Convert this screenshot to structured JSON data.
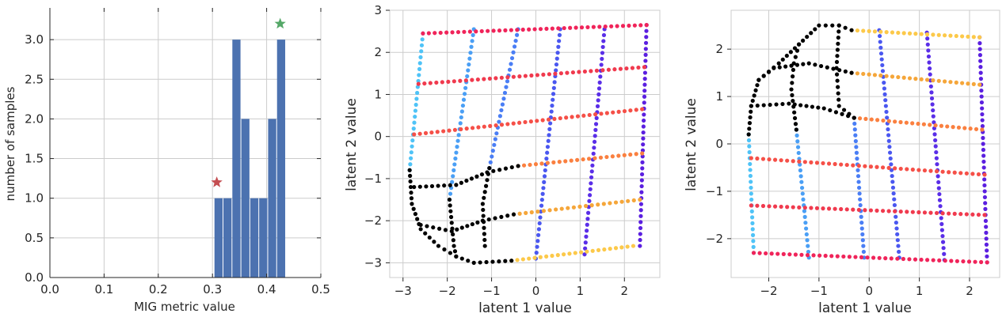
{
  "chart_data": [
    {
      "type": "bar",
      "xlabel": "MIG metric value",
      "ylabel": "number of samples",
      "xlim": [
        0.0,
        0.5
      ],
      "ylim": [
        0.0,
        3.4
      ],
      "xticks": [
        "0.0",
        "0.1",
        "0.2",
        "0.3",
        "0.4",
        "0.5"
      ],
      "yticks": [
        "0.0",
        "0.5",
        "1.0",
        "1.5",
        "2.0",
        "2.5",
        "3.0"
      ],
      "grid": true,
      "bar_color": "#4c72b0",
      "bins": [
        {
          "x0": 0.303,
          "x1": 0.3195,
          "value": 1
        },
        {
          "x0": 0.3195,
          "x1": 0.336,
          "value": 1
        },
        {
          "x0": 0.336,
          "x1": 0.3525,
          "value": 3
        },
        {
          "x0": 0.3525,
          "x1": 0.369,
          "value": 2
        },
        {
          "x0": 0.369,
          "x1": 0.3855,
          "value": 1
        },
        {
          "x0": 0.3855,
          "x1": 0.402,
          "value": 1
        },
        {
          "x0": 0.402,
          "x1": 0.4185,
          "value": 2
        },
        {
          "x0": 0.4185,
          "x1": 0.435,
          "value": 3
        }
      ],
      "markers": [
        {
          "x": 0.308,
          "y": 1.2,
          "color": "#c44e52",
          "shape": "star"
        },
        {
          "x": 0.425,
          "y": 3.2,
          "color": "#55a868",
          "shape": "star"
        }
      ]
    },
    {
      "type": "scatter",
      "xlabel": "latent 1 value",
      "ylabel": "latent 2 value",
      "xlim": [
        -3.3,
        2.8
      ],
      "ylim": [
        -3.35,
        3.0
      ],
      "xticks": [
        "−3",
        "−2",
        "−1",
        "0",
        "1",
        "2"
      ],
      "yticks": [
        "−3",
        "−2",
        "−1",
        "0",
        "1",
        "2",
        "3"
      ],
      "xtick_values": [
        -3,
        -2,
        -1,
        0,
        1,
        2
      ],
      "ytick_values": [
        -3,
        -2,
        -1,
        0,
        1,
        2,
        3
      ],
      "grid": true,
      "grid_lines": [
        {
          "color": "#4fc3f7",
          "points": [
            [
              -2.85,
              -0.8
            ],
            [
              -2.55,
              2.45
            ]
          ]
        },
        {
          "color": "#4a9ff5",
          "points": [
            [
              -1.95,
              -1.5
            ],
            [
              -1.4,
              2.55
            ]
          ]
        },
        {
          "color": "#4a7ef5",
          "points": [
            [
              -1.05,
              -0.75
            ],
            [
              -0.4,
              2.55
            ]
          ]
        },
        {
          "color": "#4a57f0",
          "points": [
            [
              0.0,
              -2.9
            ],
            [
              0.55,
              2.55
            ]
          ]
        },
        {
          "color": "#5a2ee8",
          "points": [
            [
              1.1,
              -2.8
            ],
            [
              1.55,
              2.55
            ]
          ]
        },
        {
          "color": "#5b1fe0",
          "points": [
            [
              2.35,
              -2.6
            ],
            [
              2.5,
              2.65
            ]
          ]
        },
        {
          "color": "#f0245a",
          "points": [
            [
              -2.55,
              2.45
            ],
            [
              2.5,
              2.65
            ]
          ]
        },
        {
          "color": "#f03a4e",
          "points": [
            [
              -2.65,
              1.25
            ],
            [
              2.45,
              1.65
            ]
          ]
        },
        {
          "color": "#f55048",
          "points": [
            [
              -2.75,
              0.05
            ],
            [
              2.4,
              0.65
            ]
          ]
        },
        {
          "color": "#fa8040",
          "points": [
            [
              -0.4,
              -0.7
            ],
            [
              2.4,
              -0.4
            ]
          ]
        },
        {
          "color": "#f5a63a",
          "points": [
            [
              -0.5,
              -1.85
            ],
            [
              2.35,
              -1.5
            ]
          ]
        },
        {
          "color": "#fcc94a",
          "points": [
            [
              -0.55,
              -2.95
            ],
            [
              2.2,
              -2.6
            ]
          ]
        },
        {
          "color": "#000000",
          "points": [
            [
              -2.85,
              -0.8
            ],
            [
              -2.8,
              -1.6
            ],
            [
              -2.6,
              -2.2
            ],
            [
              -2.2,
              -2.6
            ],
            [
              -1.8,
              -2.85
            ],
            [
              -1.4,
              -3.0
            ],
            [
              -0.55,
              -2.95
            ]
          ]
        },
        {
          "color": "#000000",
          "points": [
            [
              -2.75,
              -1.2
            ],
            [
              -1.8,
              -1.15
            ],
            [
              -1.1,
              -0.85
            ],
            [
              -0.4,
              -0.7
            ]
          ]
        },
        {
          "color": "#000000",
          "points": [
            [
              -2.6,
              -2.1
            ],
            [
              -1.9,
              -2.25
            ],
            [
              -1.2,
              -2.0
            ],
            [
              -0.5,
              -1.85
            ]
          ]
        },
        {
          "color": "#000000",
          "points": [
            [
              -1.95,
              -1.5
            ],
            [
              -1.85,
              -2.6
            ],
            [
              -1.8,
              -2.85
            ]
          ]
        },
        {
          "color": "#000000",
          "points": [
            [
              -1.05,
              -0.75
            ],
            [
              -1.2,
              -1.6
            ],
            [
              -1.15,
              -2.6
            ]
          ]
        }
      ]
    },
    {
      "type": "scatter",
      "xlabel": "latent 1 value",
      "ylabel": "latent 2 value",
      "xlim": [
        -2.75,
        2.6
      ],
      "ylim": [
        -2.82,
        2.82
      ],
      "xticks": [
        "−2",
        "−1",
        "0",
        "1",
        "2"
      ],
      "yticks": [
        "−2",
        "−1",
        "0",
        "1",
        "2"
      ],
      "xtick_values": [
        -2,
        -1,
        0,
        1,
        2
      ],
      "ytick_values": [
        -2,
        -1,
        0,
        1,
        2
      ],
      "grid": true,
      "grid_lines": [
        {
          "color": "#4fc3f7",
          "points": [
            [
              -2.4,
              0.2
            ],
            [
              -2.3,
              -2.3
            ]
          ]
        },
        {
          "color": "#4a9ff5",
          "points": [
            [
              -1.45,
              0.3
            ],
            [
              -1.2,
              -2.4
            ]
          ]
        },
        {
          "color": "#4a7ef5",
          "points": [
            [
              -0.3,
              0.55
            ],
            [
              -0.1,
              -2.4
            ]
          ]
        },
        {
          "color": "#4a57f0",
          "points": [
            [
              0.2,
              2.4
            ],
            [
              0.6,
              -2.4
            ]
          ]
        },
        {
          "color": "#5a2ee8",
          "points": [
            [
              1.15,
              2.35
            ],
            [
              1.5,
              -2.45
            ]
          ]
        },
        {
          "color": "#5b1fe0",
          "points": [
            [
              2.2,
              2.25
            ],
            [
              2.35,
              -2.5
            ]
          ]
        },
        {
          "color": "#fcc94a",
          "points": [
            [
              -0.35,
              2.4
            ],
            [
              2.2,
              2.25
            ]
          ]
        },
        {
          "color": "#f5a63a",
          "points": [
            [
              -0.35,
              1.5
            ],
            [
              2.2,
              1.25
            ]
          ]
        },
        {
          "color": "#fa8040",
          "points": [
            [
              -0.3,
              0.55
            ],
            [
              2.25,
              0.3
            ]
          ]
        },
        {
          "color": "#f55048",
          "points": [
            [
              -2.35,
              -0.3
            ],
            [
              2.3,
              -0.65
            ]
          ]
        },
        {
          "color": "#f03a4e",
          "points": [
            [
              -2.35,
              -1.3
            ],
            [
              2.3,
              -1.5
            ]
          ]
        },
        {
          "color": "#f0245a",
          "points": [
            [
              -2.3,
              -2.3
            ],
            [
              2.35,
              -2.5
            ]
          ]
        },
        {
          "color": "#000000",
          "points": [
            [
              -2.4,
              0.2
            ],
            [
              -2.35,
              0.8
            ],
            [
              -2.2,
              1.35
            ],
            [
              -1.8,
              1.7
            ],
            [
              -1.4,
              2.1
            ],
            [
              -1.0,
              2.5
            ],
            [
              -0.6,
              2.5
            ],
            [
              -0.35,
              2.4
            ]
          ]
        },
        {
          "color": "#000000",
          "points": [
            [
              -2.35,
              0.8
            ],
            [
              -1.6,
              0.85
            ],
            [
              -0.9,
              0.75
            ],
            [
              -0.3,
              0.55
            ]
          ]
        },
        {
          "color": "#000000",
          "points": [
            [
              -2.2,
              1.35
            ],
            [
              -1.9,
              1.6
            ],
            [
              -1.2,
              1.7
            ],
            [
              -0.35,
              1.5
            ]
          ]
        },
        {
          "color": "#000000",
          "points": [
            [
              -1.45,
              0.3
            ],
            [
              -1.55,
              1.15
            ],
            [
              -1.5,
              1.7
            ],
            [
              -1.4,
              2.1
            ]
          ]
        },
        {
          "color": "#000000",
          "points": [
            [
              -0.3,
              0.55
            ],
            [
              -0.6,
              0.8
            ],
            [
              -0.65,
              1.6
            ],
            [
              -0.6,
              2.5
            ]
          ]
        }
      ]
    }
  ]
}
